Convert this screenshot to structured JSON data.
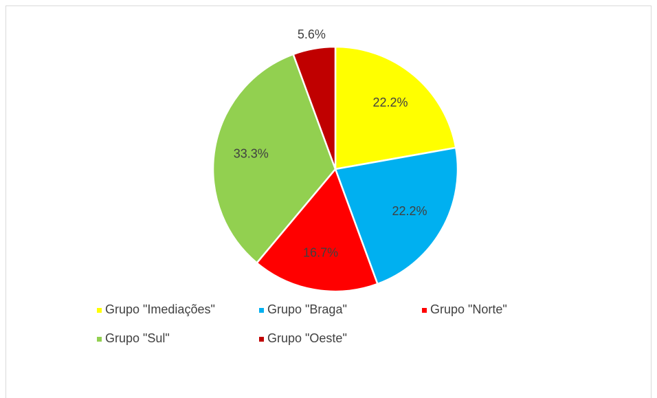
{
  "chart_data": {
    "type": "pie",
    "categories": [
      "Grupo \"Imediações\"",
      "Grupo \"Braga\"",
      "Grupo \"Norte\"",
      "Grupo \"Sul\"",
      "Grupo \"Oeste\""
    ],
    "values": [
      22.2,
      22.2,
      16.7,
      33.3,
      5.6
    ],
    "value_labels": [
      "22.2%",
      "22.2%",
      "16.7%",
      "33.3%",
      "5.6%"
    ],
    "colors": [
      "#ffff00",
      "#00b0f0",
      "#ff0000",
      "#92d050",
      "#c00000"
    ],
    "legend": "bottom"
  }
}
